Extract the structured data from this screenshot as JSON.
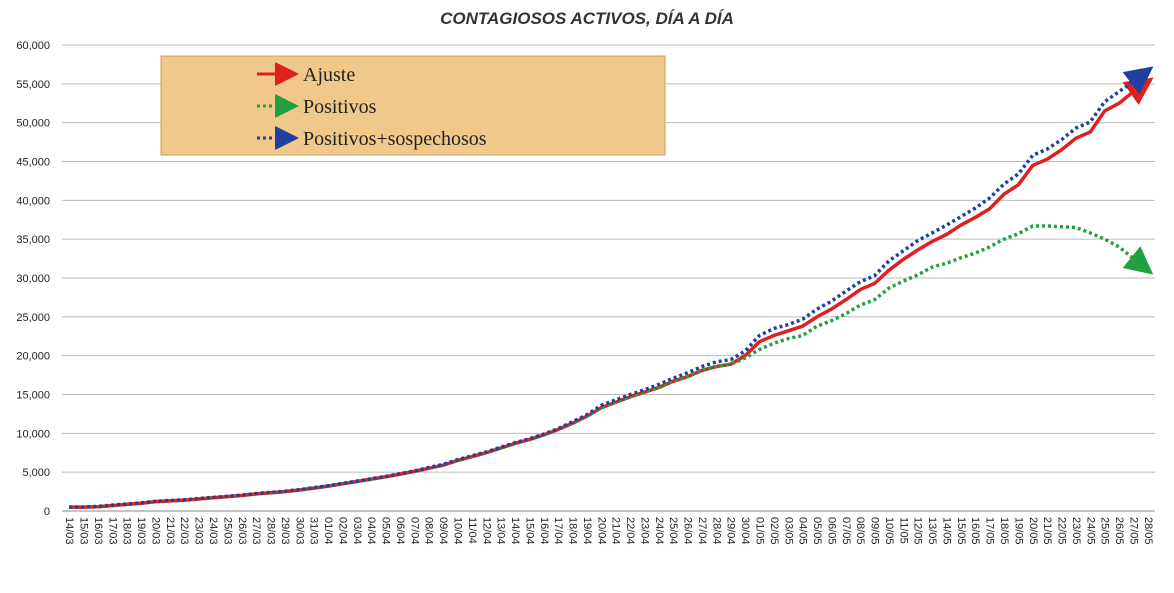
{
  "chart_data": {
    "type": "line",
    "title": "CONTAGIOSOS ACTIVOS, DÍA A DÍA",
    "categories": [
      "14/03",
      "15/03",
      "16/03",
      "17/03",
      "18/03",
      "19/03",
      "20/03",
      "21/03",
      "22/03",
      "23/03",
      "24/03",
      "25/03",
      "26/03",
      "27/03",
      "28/03",
      "29/03",
      "30/03",
      "31/03",
      "01/04",
      "02/04",
      "03/04",
      "04/04",
      "05/04",
      "06/04",
      "07/04",
      "08/04",
      "09/04",
      "10/04",
      "11/04",
      "12/04",
      "13/04",
      "14/04",
      "15/04",
      "16/04",
      "17/04",
      "18/04",
      "19/04",
      "20/04",
      "21/04",
      "22/04",
      "23/04",
      "24/04",
      "25/04",
      "26/04",
      "27/04",
      "28/04",
      "29/04",
      "30/04",
      "01/05",
      "02/05",
      "03/05",
      "04/05",
      "05/05",
      "06/05",
      "07/05",
      "08/05",
      "09/05",
      "10/05",
      "11/05",
      "12/05",
      "13/05",
      "14/05",
      "15/05",
      "16/05",
      "17/05",
      "18/05",
      "19/05",
      "20/05",
      "21/05",
      "22/05",
      "23/05",
      "24/05",
      "25/05",
      "26/05",
      "27/05",
      "28/05"
    ],
    "series": [
      {
        "name": "Ajuste",
        "color": "#e02020",
        "dash": "solid",
        "values": [
          500,
          500,
          550,
          700,
          850,
          1000,
          1200,
          1300,
          1400,
          1550,
          1700,
          1850,
          2000,
          2200,
          2350,
          2500,
          2700,
          2950,
          3200,
          3500,
          3800,
          4100,
          4400,
          4750,
          5100,
          5500,
          5900,
          6500,
          7000,
          7500,
          8100,
          8700,
          9200,
          9800,
          10500,
          11300,
          12200,
          13300,
          14000,
          14700,
          15300,
          15900,
          16700,
          17300,
          18100,
          18600,
          18900,
          20000,
          21800,
          22600,
          23200,
          23800,
          25000,
          26000,
          27200,
          28500,
          29300,
          31000,
          32400,
          33600,
          34700,
          35600,
          36800,
          37800,
          38900,
          40800,
          42000,
          44500,
          45300,
          46500,
          48000,
          48800,
          51500,
          52500,
          54000,
          55300
        ]
      },
      {
        "name": "Positivos",
        "color": "#22a040",
        "dash": "dotted",
        "values": [
          500,
          500,
          550,
          700,
          850,
          1000,
          1200,
          1300,
          1400,
          1550,
          1700,
          1850,
          2000,
          2200,
          2350,
          2500,
          2700,
          2950,
          3200,
          3500,
          3800,
          4100,
          4400,
          4750,
          5100,
          5500,
          5900,
          6500,
          7000,
          7500,
          8100,
          8700,
          9200,
          9800,
          10500,
          11300,
          12200,
          13300,
          14000,
          14700,
          15300,
          15900,
          16700,
          17300,
          18100,
          18600,
          18900,
          19700,
          20800,
          21600,
          22200,
          22600,
          23800,
          24500,
          25400,
          26500,
          27200,
          28700,
          29600,
          30400,
          31400,
          31900,
          32600,
          33200,
          34000,
          35000,
          35700,
          36700,
          36700,
          36600,
          36500,
          35800,
          35000,
          34000,
          32500,
          31000
        ]
      },
      {
        "name": "Positivos+sospechosos",
        "color": "#2040a0",
        "dash": "dotted",
        "values": [
          500,
          500,
          600,
          750,
          900,
          1050,
          1250,
          1350,
          1450,
          1600,
          1750,
          1900,
          2050,
          2250,
          2400,
          2550,
          2750,
          3000,
          3250,
          3550,
          3850,
          4150,
          4450,
          4800,
          5150,
          5600,
          6000,
          6600,
          7100,
          7600,
          8200,
          8800,
          9300,
          9900,
          10600,
          11500,
          12400,
          13600,
          14300,
          15000,
          15600,
          16300,
          17100,
          17800,
          18600,
          19200,
          19500,
          20600,
          22600,
          23500,
          24000,
          24700,
          26000,
          27000,
          28300,
          29500,
          30300,
          32200,
          33500,
          34800,
          35800,
          36800,
          37900,
          39000,
          40300,
          42100,
          43400,
          45800,
          46600,
          47800,
          49300,
          50100,
          52700,
          54000,
          55300,
          56700
        ]
      }
    ],
    "ylim": [
      0,
      60000
    ],
    "yticks": [
      0,
      {
        "value": 5000,
        "label": "5,000"
      },
      {
        "value": 10000,
        "label": "10,000"
      },
      {
        "value": 15000,
        "label": "15,000"
      },
      {
        "value": 20000,
        "label": "20,000"
      },
      {
        "value": 25000,
        "label": "25,000"
      },
      {
        "value": 30000,
        "label": "30,000"
      },
      {
        "value": 35000,
        "label": "35,000"
      },
      {
        "value": 40000,
        "label": "40,000"
      },
      {
        "value": 45000,
        "label": "45,000"
      },
      {
        "value": 50000,
        "label": "50,000"
      },
      {
        "value": 55000,
        "label": "55,000"
      },
      {
        "value": 60000,
        "label": "60,000"
      }
    ],
    "grid": true,
    "legend": "top-left"
  }
}
